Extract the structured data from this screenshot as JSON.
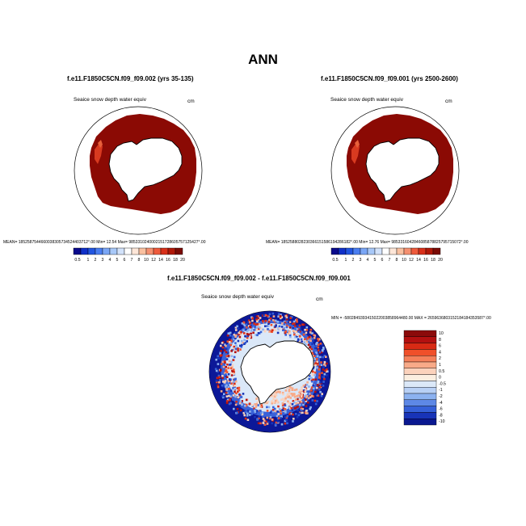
{
  "title": "ANN",
  "panels": [
    {
      "title": "f.e11.F1850C5CN.f09_f09.002 (yrs 35-135)",
      "var_label": "Seaice snow depth water equiv",
      "units": "cm",
      "stats": "MEAN= 1852587544660038305734524403712°.00   Min=  12.54  Max= 9853310240002151728605757125427°.00",
      "colorbar_labels": [
        "0.5",
        "1",
        "2",
        "3",
        "4",
        "5",
        "6",
        "7",
        "8",
        "10",
        "12",
        "14",
        "16",
        "18",
        "20"
      ]
    },
    {
      "title": "f.e11.F1850C5CN.f09_f09.001 (yrs 2500-2600)",
      "var_label": "Seaice snow depth water equiv",
      "units": "cm",
      "stats": "MEAN= 1852588028230366151586194286182°.00   Min=  12.76  Max= 9853316042846085878825795715072°.00",
      "colorbar_labels": [
        "0.5",
        "1",
        "2",
        "3",
        "4",
        "5",
        "6",
        "7",
        "8",
        "10",
        "12",
        "14",
        "16",
        "18",
        "20"
      ]
    }
  ],
  "diff": {
    "title": "f.e11.F1850C5CN.f09_f09.002 - f.e11.F1850C5CN.f09_f09.001",
    "var_label": "Seaice snow depth water equiv",
    "units": "cm",
    "stats": "MIN = -5802849393415022003858964480.00  MAX = 2659636803152184184353587°.00",
    "colorbar_labels": [
      "10",
      "8",
      "6",
      "4",
      "2",
      "1",
      "0.5",
      "0",
      "-0.5",
      "-1",
      "-2",
      "-4",
      "-6",
      "-8",
      "-10"
    ]
  },
  "colors": {
    "abs_palette": [
      "#0a0a8c",
      "#1030c8",
      "#2255e0",
      "#4a7ef0",
      "#7aa6f5",
      "#a8c8f8",
      "#d2e2fa",
      "#ffffff",
      "#fde6d8",
      "#f9c0a0",
      "#f59070",
      "#ee5a3c",
      "#d8301a",
      "#b01808",
      "#7a0a04"
    ],
    "diff_palette": [
      "#8b0a0a",
      "#b31010",
      "#d82a14",
      "#f0502a",
      "#f5805a",
      "#f8aa88",
      "#fbd2bc",
      "#fbeee0",
      "#dbe8f8",
      "#b8d0f5",
      "#8cb2f0",
      "#5d88e6",
      "#3560d8",
      "#1834b8",
      "#0a1890"
    ],
    "ice_dark_red": "#8b0a04"
  }
}
